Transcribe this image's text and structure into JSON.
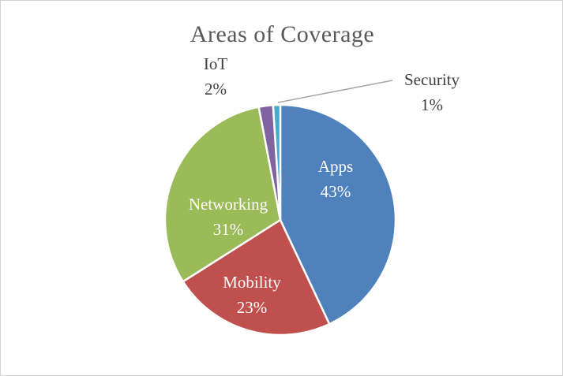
{
  "chart_data": {
    "type": "pie",
    "title": "Areas of Coverage",
    "unit": "percent",
    "total": 100,
    "start_angle_deg": 0,
    "direction": "clockwise",
    "slices": [
      {
        "name": "Apps",
        "value": 43,
        "pct": "43%",
        "color": "#4F81BD",
        "label_position": "inside"
      },
      {
        "name": "Mobility",
        "value": 23,
        "pct": "23%",
        "color": "#C0504D",
        "label_position": "inside"
      },
      {
        "name": "Networking",
        "value": 31,
        "pct": "31%",
        "color": "#9BBB59",
        "label_position": "inside"
      },
      {
        "name": "IoT",
        "value": 2,
        "pct": "2%",
        "color": "#8064A2",
        "label_position": "outside"
      },
      {
        "name": "Security",
        "value": 1,
        "pct": "1%",
        "color": "#4BACC6",
        "label_position": "outside-with-leader-line"
      }
    ],
    "slice_border_color": "#FFFFFF",
    "leader_line_color": "#A6A6A6",
    "title_color": "#595959",
    "inside_label_color": "#FFFFFF",
    "outside_label_color": "#3F3F3F",
    "legend": "none"
  }
}
